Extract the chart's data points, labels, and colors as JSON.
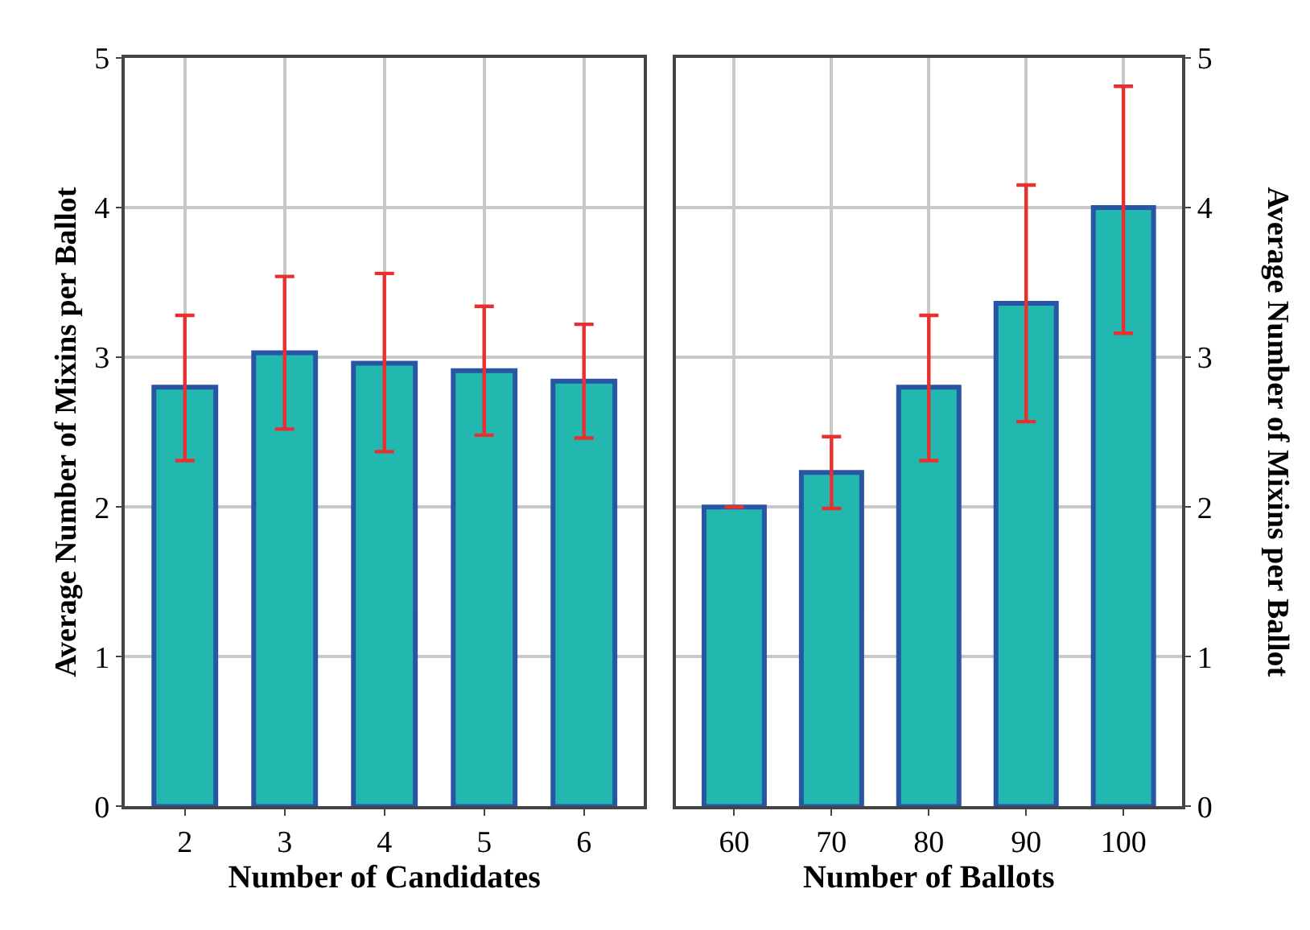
{
  "chart_data": [
    {
      "type": "bar",
      "xlabel": "Number of Candidates",
      "ylabel": "Average Number of Mixins per Ballot",
      "categories": [
        "2",
        "3",
        "4",
        "5",
        "6"
      ],
      "series": [
        {
          "color": "#22b8b0",
          "values": [
            2.8,
            3.03,
            2.96,
            2.91,
            2.84
          ],
          "errors": [
            [
              2.31,
              3.28
            ],
            [
              2.52,
              3.54
            ],
            [
              2.37,
              3.56
            ],
            [
              2.48,
              3.34
            ],
            [
              2.46,
              3.22
            ]
          ]
        }
      ],
      "ylim": [
        0,
        5
      ],
      "yticks": [
        0,
        1,
        2,
        3,
        4,
        5
      ],
      "grid": true
    },
    {
      "type": "bar",
      "xlabel": "Number of Ballots",
      "ylabel": "Average Number of Mixins per Ballot",
      "categories": [
        "60",
        "70",
        "80",
        "90",
        "100"
      ],
      "series": [
        {
          "color": "#22b8b0",
          "values": [
            2.0,
            2.23,
            2.8,
            3.36,
            4.0
          ],
          "errors": [
            [
              2.0,
              2.0
            ],
            [
              1.99,
              2.47
            ],
            [
              2.31,
              3.28
            ],
            [
              2.57,
              4.15
            ],
            [
              3.16,
              4.81
            ]
          ]
        }
      ],
      "ylim": [
        0,
        5
      ],
      "yticks": [
        0,
        1,
        2,
        3,
        4,
        5
      ],
      "grid": true
    }
  ]
}
